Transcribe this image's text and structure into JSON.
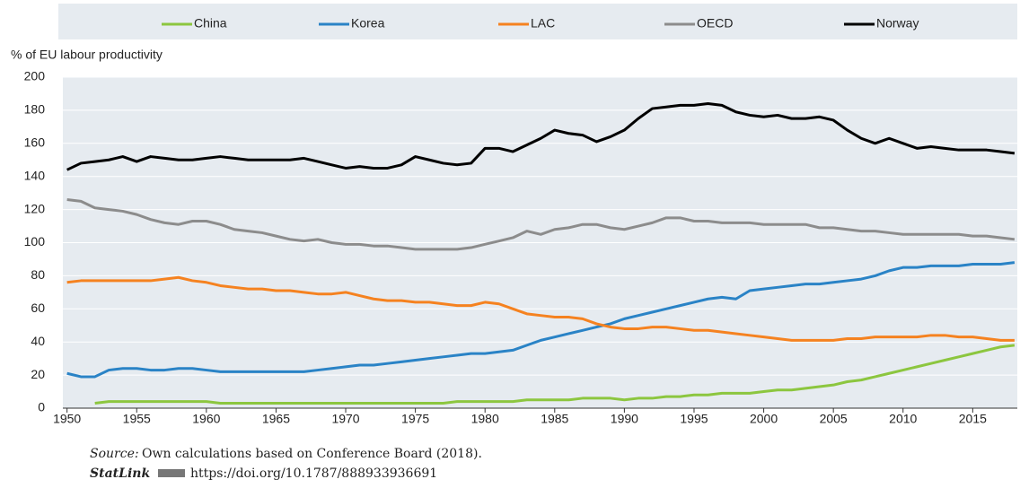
{
  "chart_data": {
    "type": "line",
    "y_label": "% of EU labour productivity",
    "x": [
      1950,
      1951,
      1952,
      1953,
      1954,
      1955,
      1956,
      1957,
      1958,
      1959,
      1960,
      1961,
      1962,
      1963,
      1964,
      1965,
      1966,
      1967,
      1968,
      1969,
      1970,
      1971,
      1972,
      1973,
      1974,
      1975,
      1976,
      1977,
      1978,
      1979,
      1980,
      1981,
      1982,
      1983,
      1984,
      1985,
      1986,
      1987,
      1988,
      1989,
      1990,
      1991,
      1992,
      1993,
      1994,
      1995,
      1996,
      1997,
      1998,
      1999,
      2000,
      2001,
      2002,
      2003,
      2004,
      2005,
      2006,
      2007,
      2008,
      2009,
      2010,
      2011,
      2012,
      2013,
      2014,
      2015,
      2016,
      2017,
      2018
    ],
    "series": [
      {
        "name": "China",
        "color": "#8cc63f",
        "values": [
          null,
          null,
          3,
          4,
          4,
          4,
          4,
          4,
          4,
          4,
          4,
          3,
          3,
          3,
          3,
          3,
          3,
          3,
          3,
          3,
          3,
          3,
          3,
          3,
          3,
          3,
          3,
          3,
          4,
          4,
          4,
          4,
          4,
          5,
          5,
          5,
          5,
          6,
          6,
          6,
          5,
          6,
          6,
          7,
          7,
          8,
          8,
          9,
          9,
          9,
          10,
          11,
          11,
          12,
          13,
          14,
          16,
          17,
          19,
          21,
          23,
          25,
          27,
          29,
          31,
          33,
          35,
          37,
          38
        ]
      },
      {
        "name": "Korea",
        "color": "#2a83c6",
        "values": [
          21,
          19,
          19,
          23,
          24,
          24,
          23,
          23,
          24,
          24,
          23,
          22,
          22,
          22,
          22,
          22,
          22,
          22,
          23,
          24,
          25,
          26,
          26,
          27,
          28,
          29,
          30,
          31,
          32,
          33,
          33,
          34,
          35,
          38,
          41,
          43,
          45,
          47,
          49,
          51,
          54,
          56,
          58,
          60,
          62,
          64,
          66,
          67,
          66,
          71,
          72,
          73,
          74,
          75,
          75,
          76,
          77,
          78,
          80,
          83,
          85,
          85,
          86,
          86,
          86,
          87,
          87,
          87,
          88
        ]
      },
      {
        "name": "LAC",
        "color": "#f58220",
        "values": [
          76,
          77,
          77,
          77,
          77,
          77,
          77,
          78,
          79,
          77,
          76,
          74,
          73,
          72,
          72,
          71,
          71,
          70,
          69,
          69,
          70,
          68,
          66,
          65,
          65,
          64,
          64,
          63,
          62,
          62,
          64,
          63,
          60,
          57,
          56,
          55,
          55,
          54,
          51,
          49,
          48,
          48,
          49,
          49,
          48,
          47,
          47,
          46,
          45,
          44,
          43,
          42,
          41,
          41,
          41,
          41,
          42,
          42,
          43,
          43,
          43,
          43,
          44,
          44,
          43,
          43,
          42,
          41,
          41
        ]
      },
      {
        "name": "OECD",
        "color": "#8c8c8c",
        "values": [
          126,
          125,
          121,
          120,
          119,
          117,
          114,
          112,
          111,
          113,
          113,
          111,
          108,
          107,
          106,
          104,
          102,
          101,
          102,
          100,
          99,
          99,
          98,
          98,
          97,
          96,
          96,
          96,
          96,
          97,
          99,
          101,
          103,
          107,
          105,
          108,
          109,
          111,
          111,
          109,
          108,
          110,
          112,
          115,
          115,
          113,
          113,
          112,
          112,
          112,
          111,
          111,
          111,
          111,
          109,
          109,
          108,
          107,
          107,
          106,
          105,
          105,
          105,
          105,
          105,
          104,
          104,
          103,
          102
        ]
      },
      {
        "name": "Norway",
        "color": "#000000",
        "values": [
          144,
          148,
          149,
          150,
          152,
          149,
          152,
          151,
          150,
          150,
          151,
          152,
          151,
          150,
          150,
          150,
          150,
          151,
          149,
          147,
          145,
          146,
          145,
          145,
          147,
          152,
          150,
          148,
          147,
          148,
          157,
          157,
          155,
          159,
          163,
          168,
          166,
          165,
          161,
          164,
          168,
          175,
          181,
          182,
          183,
          183,
          184,
          183,
          179,
          177,
          176,
          177,
          175,
          175,
          176,
          174,
          168,
          163,
          160,
          163,
          160,
          157,
          158,
          157,
          156,
          156,
          156,
          155,
          154
        ]
      }
    ],
    "xlim": [
      1949.7,
      2018.2
    ],
    "xticks": [
      1950,
      1955,
      1960,
      1965,
      1970,
      1975,
      1980,
      1985,
      1990,
      1995,
      2000,
      2005,
      2010,
      2015
    ],
    "ylim": [
      0,
      200
    ],
    "yticks": [
      0,
      20,
      40,
      60,
      80,
      100,
      120,
      140,
      160,
      180,
      200
    ],
    "grid": true
  },
  "source": {
    "label": "Source:",
    "text": "Own calculations based on Conference Board (2018)."
  },
  "statlink": {
    "label": "StatLink",
    "url": "https://doi.org/10.1787/888933936691"
  }
}
